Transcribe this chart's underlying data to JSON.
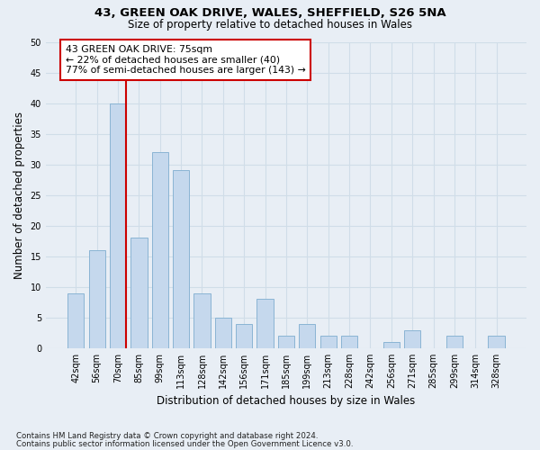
{
  "title1": "43, GREEN OAK DRIVE, WALES, SHEFFIELD, S26 5NA",
  "title2": "Size of property relative to detached houses in Wales",
  "xlabel": "Distribution of detached houses by size in Wales",
  "ylabel": "Number of detached properties",
  "categories": [
    "42sqm",
    "56sqm",
    "70sqm",
    "85sqm",
    "99sqm",
    "113sqm",
    "128sqm",
    "142sqm",
    "156sqm",
    "171sqm",
    "185sqm",
    "199sqm",
    "213sqm",
    "228sqm",
    "242sqm",
    "256sqm",
    "271sqm",
    "285sqm",
    "299sqm",
    "314sqm",
    "328sqm"
  ],
  "values": [
    9,
    16,
    40,
    18,
    32,
    29,
    9,
    5,
    4,
    8,
    2,
    4,
    2,
    2,
    0,
    1,
    3,
    0,
    2,
    0,
    2
  ],
  "bar_color": "#c5d8ed",
  "bar_edge_color": "#8ab4d4",
  "grid_color": "#d0dde8",
  "bg_color": "#e8eef5",
  "vline_x_index": 2,
  "vline_color": "#cc0000",
  "annotation_text": "43 GREEN OAK DRIVE: 75sqm\n← 22% of detached houses are smaller (40)\n77% of semi-detached houses are larger (143) →",
  "annotation_box_color": "#ffffff",
  "annotation_box_edge": "#cc0000",
  "ylim": [
    0,
    50
  ],
  "yticks": [
    0,
    5,
    10,
    15,
    20,
    25,
    30,
    35,
    40,
    45,
    50
  ],
  "footer1": "Contains HM Land Registry data © Crown copyright and database right 2024.",
  "footer2": "Contains public sector information licensed under the Open Government Licence v3.0."
}
